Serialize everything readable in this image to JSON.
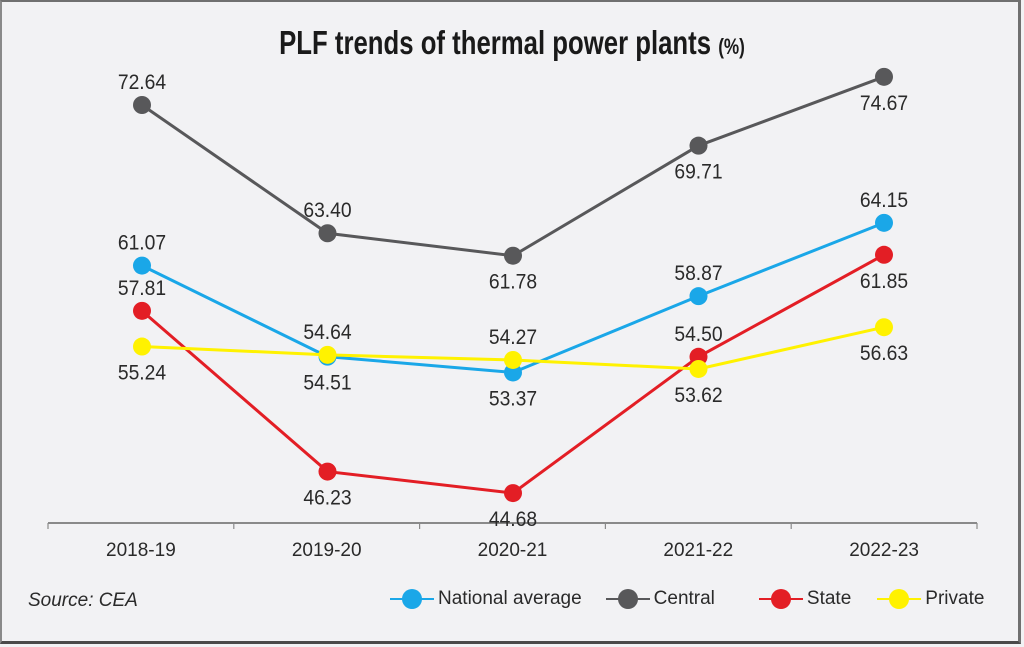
{
  "chart_data": {
    "type": "line",
    "title": "PLF trends of thermal power plants",
    "title_unit": "(%)",
    "xlabel": "",
    "ylabel": "",
    "categories": [
      "2018-19",
      "2019-20",
      "2020-21",
      "2021-22",
      "2022-23"
    ],
    "ylim": [
      44.68,
      74.67
    ],
    "grid": false,
    "legend_position": "bottom-right",
    "series": [
      {
        "name": "National average",
        "color": "#1aa7e8",
        "values": [
          61.07,
          54.51,
          53.37,
          58.87,
          64.15
        ],
        "labels": [
          "61.07",
          "54.51",
          "53.37",
          "58.87",
          "64.15"
        ],
        "label_pos": [
          "above",
          "below",
          "below",
          "above",
          "above"
        ]
      },
      {
        "name": "Central",
        "color": "#58585a",
        "values": [
          72.64,
          63.4,
          61.78,
          69.71,
          74.67
        ],
        "labels": [
          "72.64",
          "63.40",
          "61.78",
          "69.71",
          "74.67"
        ],
        "label_pos": [
          "above",
          "above",
          "below",
          "below",
          "below"
        ]
      },
      {
        "name": "State",
        "color": "#e31e25",
        "values": [
          57.81,
          46.23,
          44.68,
          54.5,
          61.85
        ],
        "labels": [
          "57.81",
          "46.23",
          "44.68",
          "54.50",
          "61.85"
        ],
        "label_pos": [
          "above",
          "below",
          "below",
          "above",
          "below"
        ]
      },
      {
        "name": "Private",
        "color": "#fff200",
        "values": [
          55.24,
          54.64,
          54.27,
          53.62,
          56.63
        ],
        "labels": [
          "55.24",
          "54.64",
          "54.27",
          "53.62",
          "56.63"
        ],
        "label_pos": [
          "below",
          "above",
          "above",
          "below",
          "below"
        ]
      }
    ],
    "source": "Source: CEA"
  }
}
